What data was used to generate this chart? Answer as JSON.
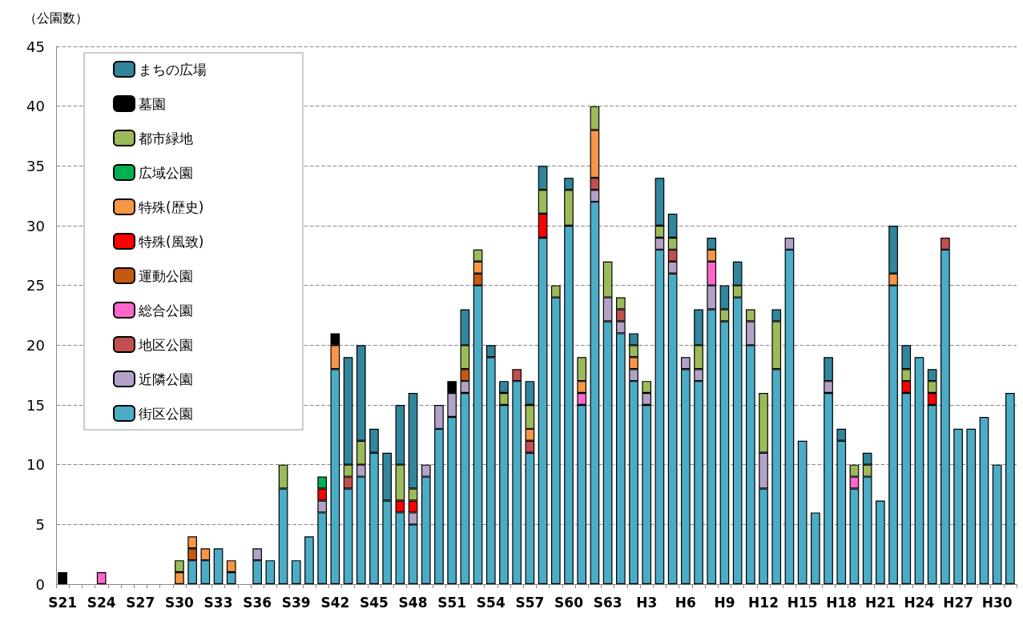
{
  "chart_data": {
    "type": "bar",
    "stacked": true,
    "ylabel": "（公園数）",
    "categories": [
      "S21",
      null,
      null,
      "S24",
      null,
      null,
      "S27",
      null,
      null,
      "S30",
      null,
      null,
      "S33",
      null,
      null,
      "S36",
      null,
      null,
      "S39",
      null,
      null,
      "S42",
      null,
      null,
      "S45",
      null,
      null,
      "S48",
      null,
      null,
      "S51",
      null,
      null,
      "S54",
      null,
      null,
      "S57",
      null,
      null,
      "S60",
      null,
      null,
      "S63",
      null,
      null,
      "H3",
      null,
      null,
      "H6",
      null,
      null,
      "H9",
      null,
      null,
      "H12",
      null,
      null,
      "H15",
      null,
      null,
      "H18",
      null,
      null,
      "H21",
      null,
      null,
      "H24",
      null,
      null,
      "H27",
      null,
      null,
      "H30",
      null
    ],
    "series": [
      {
        "name": "街区公園",
        "color": "#4bacc6",
        "values": [
          null,
          null,
          null,
          null,
          null,
          null,
          null,
          null,
          null,
          null,
          2,
          2,
          3,
          1,
          null,
          2,
          2,
          8,
          2,
          4,
          6,
          18,
          8,
          9,
          11,
          7,
          6,
          5,
          9,
          13,
          14,
          16,
          25,
          19,
          15,
          17,
          11,
          29,
          24,
          30,
          15,
          32,
          22,
          21,
          17,
          15,
          28,
          26,
          18,
          17,
          23,
          22,
          24,
          20,
          8,
          18,
          28,
          12,
          6,
          16,
          12,
          8,
          9,
          7,
          25,
          16,
          19,
          15,
          28,
          13,
          13,
          14,
          10,
          16
        ]
      },
      {
        "name": "近隣公園",
        "color": "#b3a2c7",
        "values": [
          null,
          null,
          null,
          null,
          null,
          null,
          null,
          null,
          null,
          null,
          null,
          null,
          null,
          null,
          null,
          1,
          null,
          null,
          null,
          null,
          1,
          null,
          null,
          1,
          null,
          null,
          null,
          1,
          1,
          2,
          2,
          1,
          null,
          null,
          null,
          null,
          null,
          null,
          null,
          null,
          null,
          1,
          2,
          1,
          1,
          1,
          1,
          1,
          1,
          1,
          2,
          null,
          null,
          2,
          3,
          null,
          1,
          null,
          null,
          1,
          null,
          null,
          null,
          null,
          null,
          null,
          null,
          null,
          null,
          null,
          null,
          null,
          null,
          null
        ]
      },
      {
        "name": "地区公園",
        "color": "#c0504d",
        "values": [
          null,
          null,
          null,
          null,
          null,
          null,
          null,
          null,
          null,
          null,
          null,
          null,
          null,
          null,
          null,
          null,
          null,
          null,
          null,
          null,
          null,
          null,
          1,
          null,
          null,
          null,
          null,
          null,
          null,
          null,
          null,
          null,
          null,
          null,
          null,
          1,
          1,
          null,
          null,
          null,
          null,
          1,
          null,
          1,
          null,
          null,
          null,
          1,
          null,
          null,
          null,
          null,
          null,
          null,
          null,
          null,
          null,
          null,
          null,
          null,
          null,
          null,
          null,
          null,
          null,
          null,
          null,
          null,
          1,
          null,
          null,
          null,
          null,
          null
        ]
      },
      {
        "name": "総合公園",
        "color": "#ff66cc",
        "values": [
          null,
          null,
          null,
          1,
          null,
          null,
          null,
          null,
          null,
          null,
          null,
          null,
          null,
          null,
          null,
          null,
          null,
          null,
          null,
          null,
          null,
          null,
          null,
          null,
          null,
          null,
          null,
          null,
          null,
          null,
          null,
          null,
          null,
          null,
          null,
          null,
          null,
          null,
          null,
          null,
          1,
          null,
          null,
          null,
          null,
          null,
          null,
          null,
          null,
          null,
          2,
          null,
          null,
          null,
          null,
          null,
          null,
          null,
          null,
          null,
          null,
          1,
          null,
          null,
          null,
          null,
          null,
          null,
          null,
          null,
          null,
          null,
          null,
          null
        ]
      },
      {
        "name": "運動公園",
        "color": "#c65911",
        "values": [
          null,
          null,
          null,
          null,
          null,
          null,
          null,
          null,
          null,
          null,
          1,
          null,
          null,
          null,
          null,
          null,
          null,
          null,
          null,
          null,
          null,
          null,
          null,
          null,
          null,
          null,
          null,
          null,
          null,
          null,
          null,
          1,
          1,
          null,
          null,
          null,
          null,
          null,
          null,
          null,
          null,
          null,
          null,
          null,
          null,
          null,
          null,
          null,
          null,
          null,
          null,
          null,
          null,
          null,
          null,
          null,
          null,
          null,
          null,
          null,
          null,
          null,
          null,
          null,
          null,
          null,
          null,
          null,
          null,
          null,
          null,
          null,
          null,
          null
        ]
      },
      {
        "name": "特殊(風致)",
        "color": "#ff0000",
        "values": [
          null,
          null,
          null,
          null,
          null,
          null,
          null,
          null,
          null,
          null,
          null,
          null,
          null,
          null,
          null,
          null,
          null,
          null,
          null,
          null,
          1,
          null,
          null,
          null,
          null,
          null,
          1,
          1,
          null,
          null,
          null,
          null,
          null,
          null,
          null,
          null,
          null,
          2,
          null,
          null,
          null,
          null,
          null,
          null,
          null,
          null,
          null,
          null,
          null,
          null,
          null,
          null,
          null,
          null,
          null,
          null,
          null,
          null,
          null,
          null,
          null,
          null,
          null,
          null,
          null,
          1,
          null,
          1,
          null,
          null,
          null,
          null,
          null,
          null
        ]
      },
      {
        "name": "特殊(歴史)",
        "color": "#f79646",
        "values": [
          null,
          null,
          null,
          null,
          null,
          null,
          null,
          null,
          null,
          1,
          1,
          1,
          null,
          1,
          null,
          null,
          null,
          null,
          null,
          null,
          null,
          2,
          null,
          null,
          null,
          null,
          null,
          null,
          null,
          null,
          null,
          null,
          1,
          null,
          null,
          null,
          1,
          null,
          null,
          null,
          1,
          4,
          null,
          null,
          1,
          null,
          null,
          null,
          null,
          null,
          1,
          null,
          null,
          null,
          null,
          null,
          null,
          null,
          null,
          null,
          null,
          null,
          null,
          null,
          1,
          null,
          null,
          null,
          null,
          null,
          null,
          null,
          null,
          null
        ]
      },
      {
        "name": "広域公園",
        "color": "#00b050",
        "values": [
          null,
          null,
          null,
          null,
          null,
          null,
          null,
          null,
          null,
          null,
          null,
          null,
          null,
          null,
          null,
          null,
          null,
          null,
          null,
          null,
          1,
          null,
          null,
          null,
          null,
          null,
          null,
          null,
          null,
          null,
          null,
          null,
          null,
          null,
          null,
          null,
          null,
          null,
          null,
          null,
          null,
          null,
          null,
          null,
          null,
          null,
          null,
          null,
          null,
          null,
          null,
          null,
          null,
          null,
          null,
          null,
          null,
          null,
          null,
          null,
          null,
          null,
          null,
          null,
          null,
          null,
          null,
          null,
          null,
          null,
          null,
          null,
          null,
          null
        ]
      },
      {
        "name": "都市緑地",
        "color": "#9bbb59",
        "values": [
          null,
          null,
          null,
          null,
          null,
          null,
          null,
          null,
          null,
          1,
          null,
          null,
          null,
          null,
          null,
          null,
          null,
          2,
          null,
          null,
          null,
          null,
          1,
          2,
          null,
          null,
          3,
          1,
          null,
          null,
          null,
          2,
          1,
          null,
          1,
          null,
          2,
          2,
          1,
          3,
          2,
          2,
          3,
          1,
          1,
          1,
          1,
          1,
          null,
          2,
          null,
          1,
          1,
          1,
          5,
          4,
          null,
          null,
          null,
          null,
          null,
          1,
          1,
          null,
          null,
          1,
          null,
          1,
          null,
          null,
          null,
          null,
          null,
          null
        ]
      },
      {
        "name": "墓園",
        "color": "#000000",
        "values": [
          1,
          null,
          null,
          null,
          null,
          null,
          null,
          null,
          null,
          null,
          null,
          null,
          null,
          null,
          null,
          null,
          null,
          null,
          null,
          null,
          null,
          1,
          null,
          null,
          null,
          null,
          null,
          null,
          null,
          null,
          1,
          null,
          null,
          null,
          null,
          null,
          null,
          null,
          null,
          null,
          null,
          null,
          null,
          null,
          null,
          null,
          null,
          null,
          null,
          null,
          null,
          null,
          null,
          null,
          null,
          null,
          null,
          null,
          null,
          null,
          null,
          null,
          null,
          null,
          null,
          null,
          null,
          null,
          null,
          null,
          null,
          null,
          null,
          null
        ]
      },
      {
        "name": "まちの広場",
        "color": "#31859c",
        "values": [
          null,
          null,
          null,
          null,
          null,
          null,
          null,
          null,
          null,
          null,
          null,
          null,
          null,
          null,
          null,
          null,
          null,
          null,
          null,
          null,
          null,
          null,
          9,
          8,
          2,
          4,
          5,
          8,
          null,
          null,
          null,
          3,
          null,
          1,
          1,
          null,
          2,
          2,
          null,
          1,
          null,
          null,
          null,
          null,
          1,
          null,
          4,
          2,
          null,
          3,
          1,
          2,
          2,
          null,
          null,
          1,
          null,
          null,
          null,
          2,
          1,
          null,
          1,
          null,
          4,
          2,
          null,
          1,
          null,
          null,
          null,
          null,
          null,
          null
        ]
      }
    ],
    "ylim": [
      0,
      45
    ],
    "yticks": [
      0,
      5,
      10,
      15,
      20,
      25,
      30,
      35,
      40,
      45
    ],
    "grid": "y",
    "legend": "top left"
  }
}
